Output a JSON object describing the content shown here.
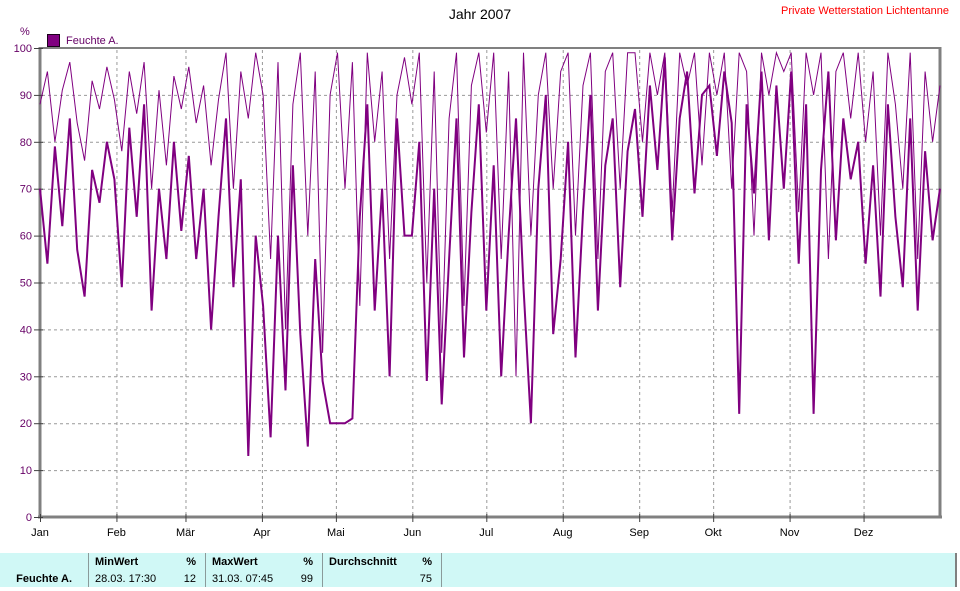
{
  "header": {
    "title": "Jahr 2007",
    "station": "Private Wetterstation Lichtentanne",
    "station_color": "#ff0000"
  },
  "legend": {
    "label": "Feuchte A.",
    "color": "#800080"
  },
  "chart_data": {
    "type": "line",
    "title": "Jahr 2007",
    "xlabel": "",
    "ylabel": "%",
    "ylim": [
      0,
      100
    ],
    "yticks": [
      0,
      10,
      20,
      30,
      40,
      50,
      60,
      70,
      80,
      90,
      100
    ],
    "x_tick_labels": [
      "Jan",
      "Feb",
      "Mär",
      "Apr",
      "Mai",
      "Jun",
      "Jul",
      "Aug",
      "Sep",
      "Okt",
      "Nov",
      "Dez"
    ],
    "grid": true,
    "grid_style": "dashed",
    "legend_position": "top-left",
    "line_color": "#800080",
    "axis_label_color": "#660066",
    "frame_color": "#808080",
    "series": [
      {
        "name": "thin-line",
        "stroke_width": 1,
        "color": "#800080",
        "values": [
          88,
          95,
          80,
          91,
          97,
          84,
          76,
          93,
          87,
          96,
          89,
          78,
          95,
          86,
          97,
          70,
          91,
          75,
          94,
          87,
          96,
          84,
          92,
          75,
          89,
          99,
          70,
          95,
          85,
          99,
          90,
          55,
          97,
          40,
          88,
          99,
          60,
          95,
          35,
          90,
          99,
          70,
          97,
          45,
          99,
          80,
          95,
          55,
          90,
          98,
          88,
          99,
          50,
          95,
          35,
          85,
          99,
          45,
          92,
          99,
          82,
          99,
          55,
          95,
          30,
          99,
          60,
          90,
          99,
          70,
          95,
          99,
          60,
          92,
          99,
          55,
          95,
          99,
          70,
          99,
          99,
          80,
          99,
          90,
          99,
          65,
          99,
          92,
          99,
          75,
          99,
          90,
          99,
          70,
          99,
          95,
          60,
          99,
          90,
          99,
          95,
          99,
          65,
          99,
          90,
          99,
          55,
          95,
          99,
          85,
          99,
          80,
          95,
          60,
          99,
          88,
          70,
          99,
          55,
          95,
          80,
          92
        ]
      },
      {
        "name": "thick-line",
        "stroke_width": 2,
        "color": "#800080",
        "values": [
          70,
          54,
          79,
          62,
          85,
          57,
          47,
          74,
          67,
          80,
          72,
          49,
          83,
          64,
          88,
          44,
          70,
          55,
          80,
          61,
          77,
          55,
          70,
          40,
          64,
          85,
          49,
          72,
          13,
          60,
          45,
          17,
          60,
          27,
          75,
          39,
          15,
          55,
          29,
          20,
          20,
          20,
          21,
          64,
          88,
          44,
          70,
          30,
          85,
          60,
          60,
          80,
          29,
          70,
          24,
          55,
          85,
          34,
          65,
          88,
          44,
          75,
          30,
          60,
          85,
          49,
          20,
          70,
          90,
          39,
          55,
          80,
          34,
          65,
          90,
          44,
          75,
          85,
          49,
          78,
          87,
          64,
          92,
          74,
          98,
          59,
          85,
          95,
          69,
          90,
          92,
          77,
          95,
          84,
          22,
          88,
          69,
          95,
          59,
          92,
          70,
          95,
          54,
          88,
          22,
          74,
          95,
          59,
          85,
          72,
          80,
          54,
          75,
          47,
          88,
          64,
          49,
          85,
          44,
          78,
          59,
          70
        ]
      }
    ]
  },
  "summary_table": {
    "bg_color": "#d0f8f6",
    "row_label": "Feuchte A.",
    "columns": [
      {
        "header": "MinWert",
        "unit": "%",
        "value_text": "28.03. 17:30",
        "value_num": "12"
      },
      {
        "header": "MaxWert",
        "unit": "%",
        "value_text": "31.03. 07:45",
        "value_num": "99"
      },
      {
        "header": "Durchschnitt",
        "unit": "%",
        "value_text": "",
        "value_num": "75"
      }
    ]
  }
}
